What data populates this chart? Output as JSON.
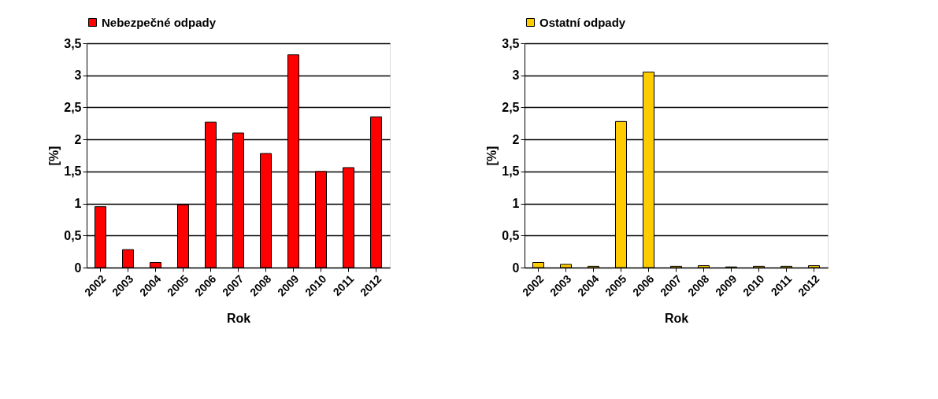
{
  "chart_data": [
    {
      "type": "bar",
      "xlabel": "Rok",
      "ylabel": "[%]",
      "categories": [
        "2002",
        "2003",
        "2004",
        "2005",
        "2006",
        "2007",
        "2008",
        "2009",
        "2010",
        "2011",
        "2012"
      ],
      "series": [
        {
          "name": "Nebezpečné odpady",
          "color": "#ff0000",
          "values": [
            0.95,
            0.28,
            0.08,
            0.98,
            2.27,
            2.1,
            1.78,
            3.32,
            1.5,
            1.56,
            2.35
          ]
        }
      ],
      "ylim": [
        0,
        3.5
      ],
      "yticks": [
        0,
        {
          "value": 0.5,
          "label": "0,5"
        },
        1,
        {
          "value": 1.5,
          "label": "1,5"
        },
        2,
        {
          "value": 2.5,
          "label": "2,5"
        },
        3,
        {
          "value": 3.5,
          "label": "3,5"
        }
      ],
      "grid": "y",
      "legend": "top"
    },
    {
      "type": "bar",
      "xlabel": "Rok",
      "ylabel": "[%]",
      "categories": [
        "2002",
        "2003",
        "2004",
        "2005",
        "2006",
        "2007",
        "2008",
        "2009",
        "2010",
        "2011",
        "2012"
      ],
      "series": [
        {
          "name": "Ostatní odpady",
          "color": "#ffcc00",
          "values": [
            0.08,
            0.05,
            0.02,
            2.28,
            3.05,
            0.02,
            0.03,
            0.01,
            0.02,
            0.02,
            0.03
          ]
        }
      ],
      "ylim": [
        0,
        3.5
      ],
      "yticks": [
        0,
        {
          "value": 0.5,
          "label": "0,5"
        },
        1,
        {
          "value": 1.5,
          "label": "1,5"
        },
        2,
        {
          "value": 2.5,
          "label": "2,5"
        },
        3,
        {
          "value": 3.5,
          "label": "3,5"
        }
      ],
      "grid": "y",
      "legend": "top"
    }
  ]
}
